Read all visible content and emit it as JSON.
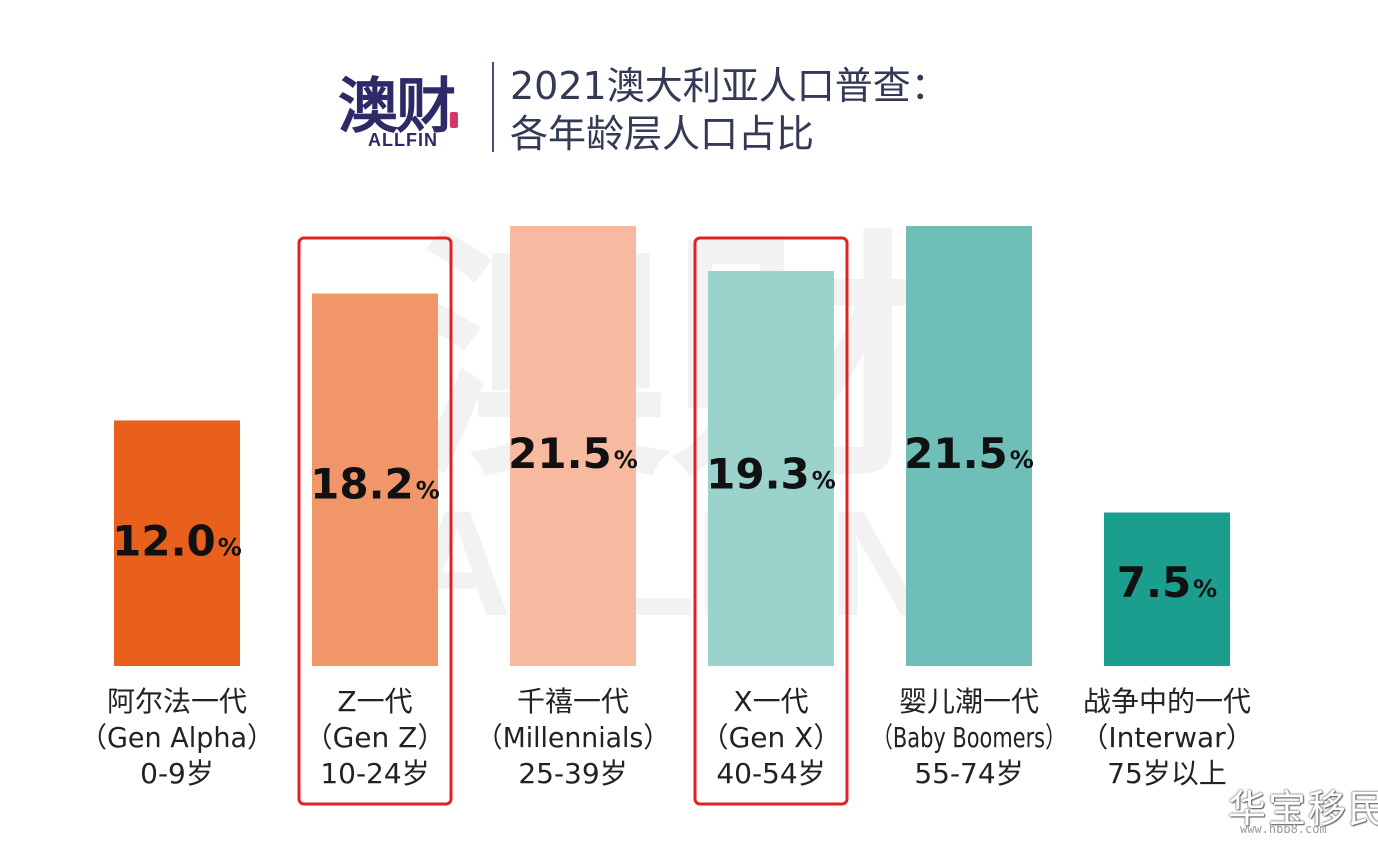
{
  "logo": {
    "cn": "澳财",
    "en": "ALLFIN"
  },
  "title": {
    "line1": "2021澳大利亚人口普查：",
    "line2": "各年龄层人口占比"
  },
  "watermark": {
    "center_cn": "澳财",
    "center_en": "ALLFIN",
    "corner": "华宝移民",
    "url": "www.hbb8.com"
  },
  "chart_data": {
    "type": "bar",
    "categories": [
      "阿尔法一代",
      "Z一代",
      "千禧一代",
      "X一代",
      "婴儿潮一代",
      "战争中的一代"
    ],
    "category_subtitles": [
      "（Gen Alpha）",
      "（Gen Z）",
      "（Millennials）",
      "（Gen X）",
      "（Baby Boomers）",
      "（Interwar）"
    ],
    "category_ages": [
      "0-9岁",
      "10-24岁",
      "25-39岁",
      "40-54岁",
      "55-74岁",
      "75岁以上"
    ],
    "values": [
      12.0,
      18.2,
      21.5,
      19.3,
      21.5,
      7.5
    ],
    "value_labels": [
      "12.0",
      "18.2",
      "21.5",
      "19.3",
      "21.5",
      "7.5"
    ],
    "unit": "%",
    "colors": [
      "#e8601c",
      "#f09668",
      "#f7baa0",
      "#9bd3cc",
      "#6fbeb8",
      "#1b9e8e"
    ],
    "highlighted": [
      "Z一代",
      "X一代"
    ],
    "highlight_color": "#e22222",
    "ylim": [
      0,
      21.5
    ],
    "grid": false,
    "legend": "none"
  }
}
